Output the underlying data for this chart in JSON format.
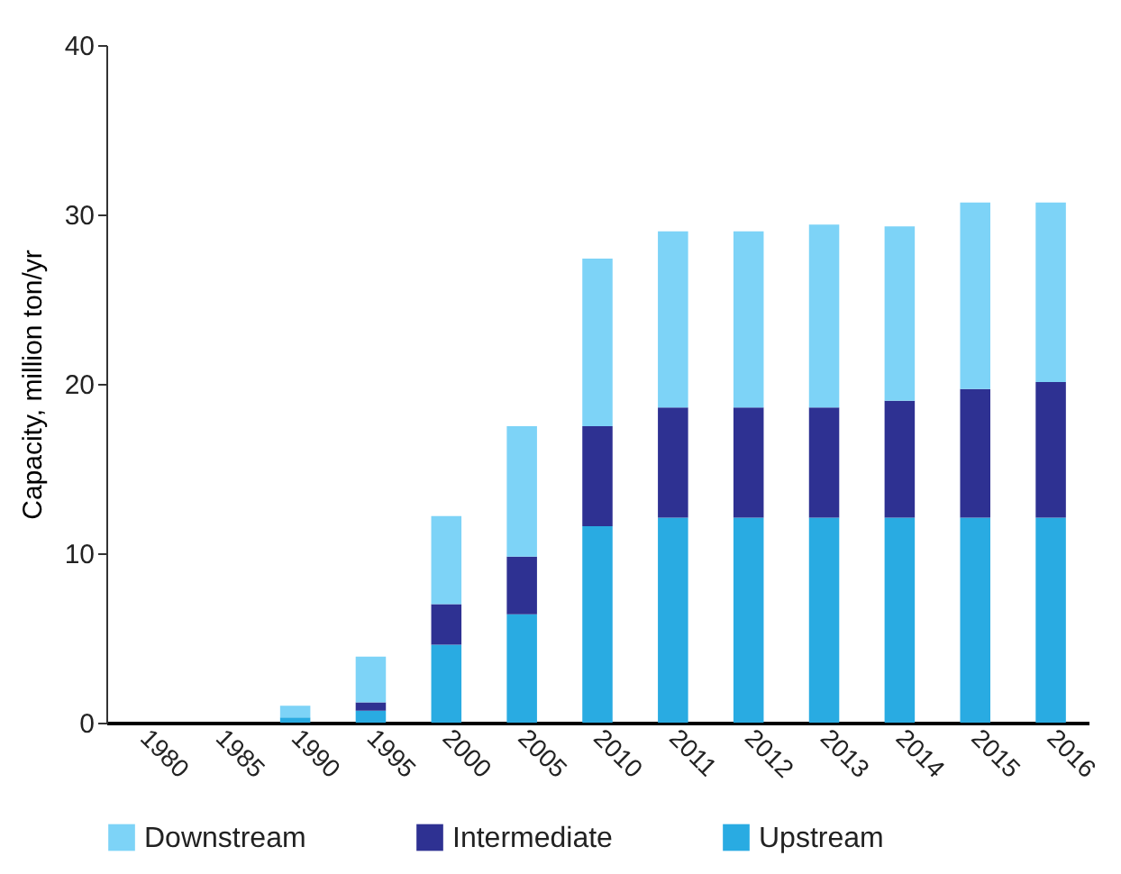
{
  "chart_data": {
    "type": "bar",
    "stacked": true,
    "ylabel": "Capacity, million ton/yr",
    "categories": [
      "1980",
      "1985",
      "1990",
      "1995",
      "2000",
      "2005",
      "2010",
      "2011",
      "2012",
      "2013",
      "2014",
      "2015",
      "2016"
    ],
    "series": [
      {
        "name": "Upstream",
        "color": "#29abe2",
        "values": [
          0,
          0,
          0.3,
          0.7,
          4.6,
          6.4,
          11.6,
          12.1,
          12.1,
          12.1,
          12.1,
          12.1,
          12.1
        ]
      },
      {
        "name": "Intermediate",
        "color": "#2e3192",
        "values": [
          0,
          0,
          0,
          0.5,
          2.4,
          3.4,
          5.9,
          6.5,
          6.5,
          6.5,
          6.9,
          7.6,
          8.0
        ]
      },
      {
        "name": "Downstream",
        "color": "#7dd3f7",
        "values": [
          0,
          0,
          0.7,
          2.7,
          5.2,
          7.7,
          9.9,
          10.4,
          10.4,
          10.8,
          10.3,
          11.0,
          10.6
        ]
      }
    ],
    "ylim": [
      0,
      40
    ],
    "yticks": [
      0,
      10,
      20,
      30,
      40
    ],
    "grid": false,
    "legend": "bottom"
  }
}
